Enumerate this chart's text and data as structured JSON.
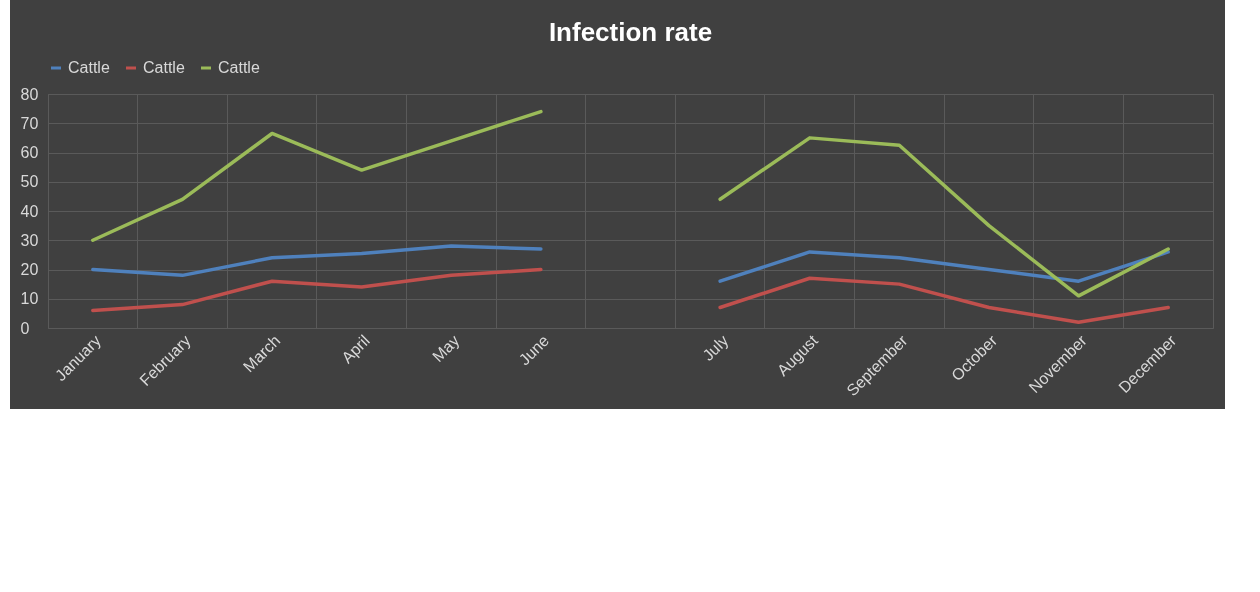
{
  "chart_data": {
    "type": "line",
    "title": "Infection rate",
    "categories": [
      "January",
      "February",
      "March",
      "April",
      "May",
      "June",
      null,
      "July",
      "August",
      "September",
      "October",
      "November",
      "December"
    ],
    "series": [
      {
        "name": "Cattle",
        "color": "#4f81bd",
        "values": [
          20,
          18,
          24,
          25.5,
          28,
          27,
          null,
          16,
          26,
          24,
          20,
          16,
          26
        ]
      },
      {
        "name": "Cattle",
        "color": "#c0504d",
        "values": [
          6,
          8,
          16,
          14,
          18,
          20,
          null,
          7,
          17,
          15,
          7,
          2,
          7
        ]
      },
      {
        "name": "Cattle",
        "color": "#9bbb59",
        "values": [
          30,
          44,
          66.5,
          54,
          64,
          74,
          null,
          44,
          65,
          62.5,
          35,
          11,
          27
        ]
      }
    ],
    "ylim": [
      0,
      80
    ],
    "yticks": [
      0,
      10,
      20,
      30,
      40,
      50,
      60,
      70,
      80
    ],
    "grid": true,
    "legend": "top",
    "marker": "none",
    "line_style": "solid"
  }
}
